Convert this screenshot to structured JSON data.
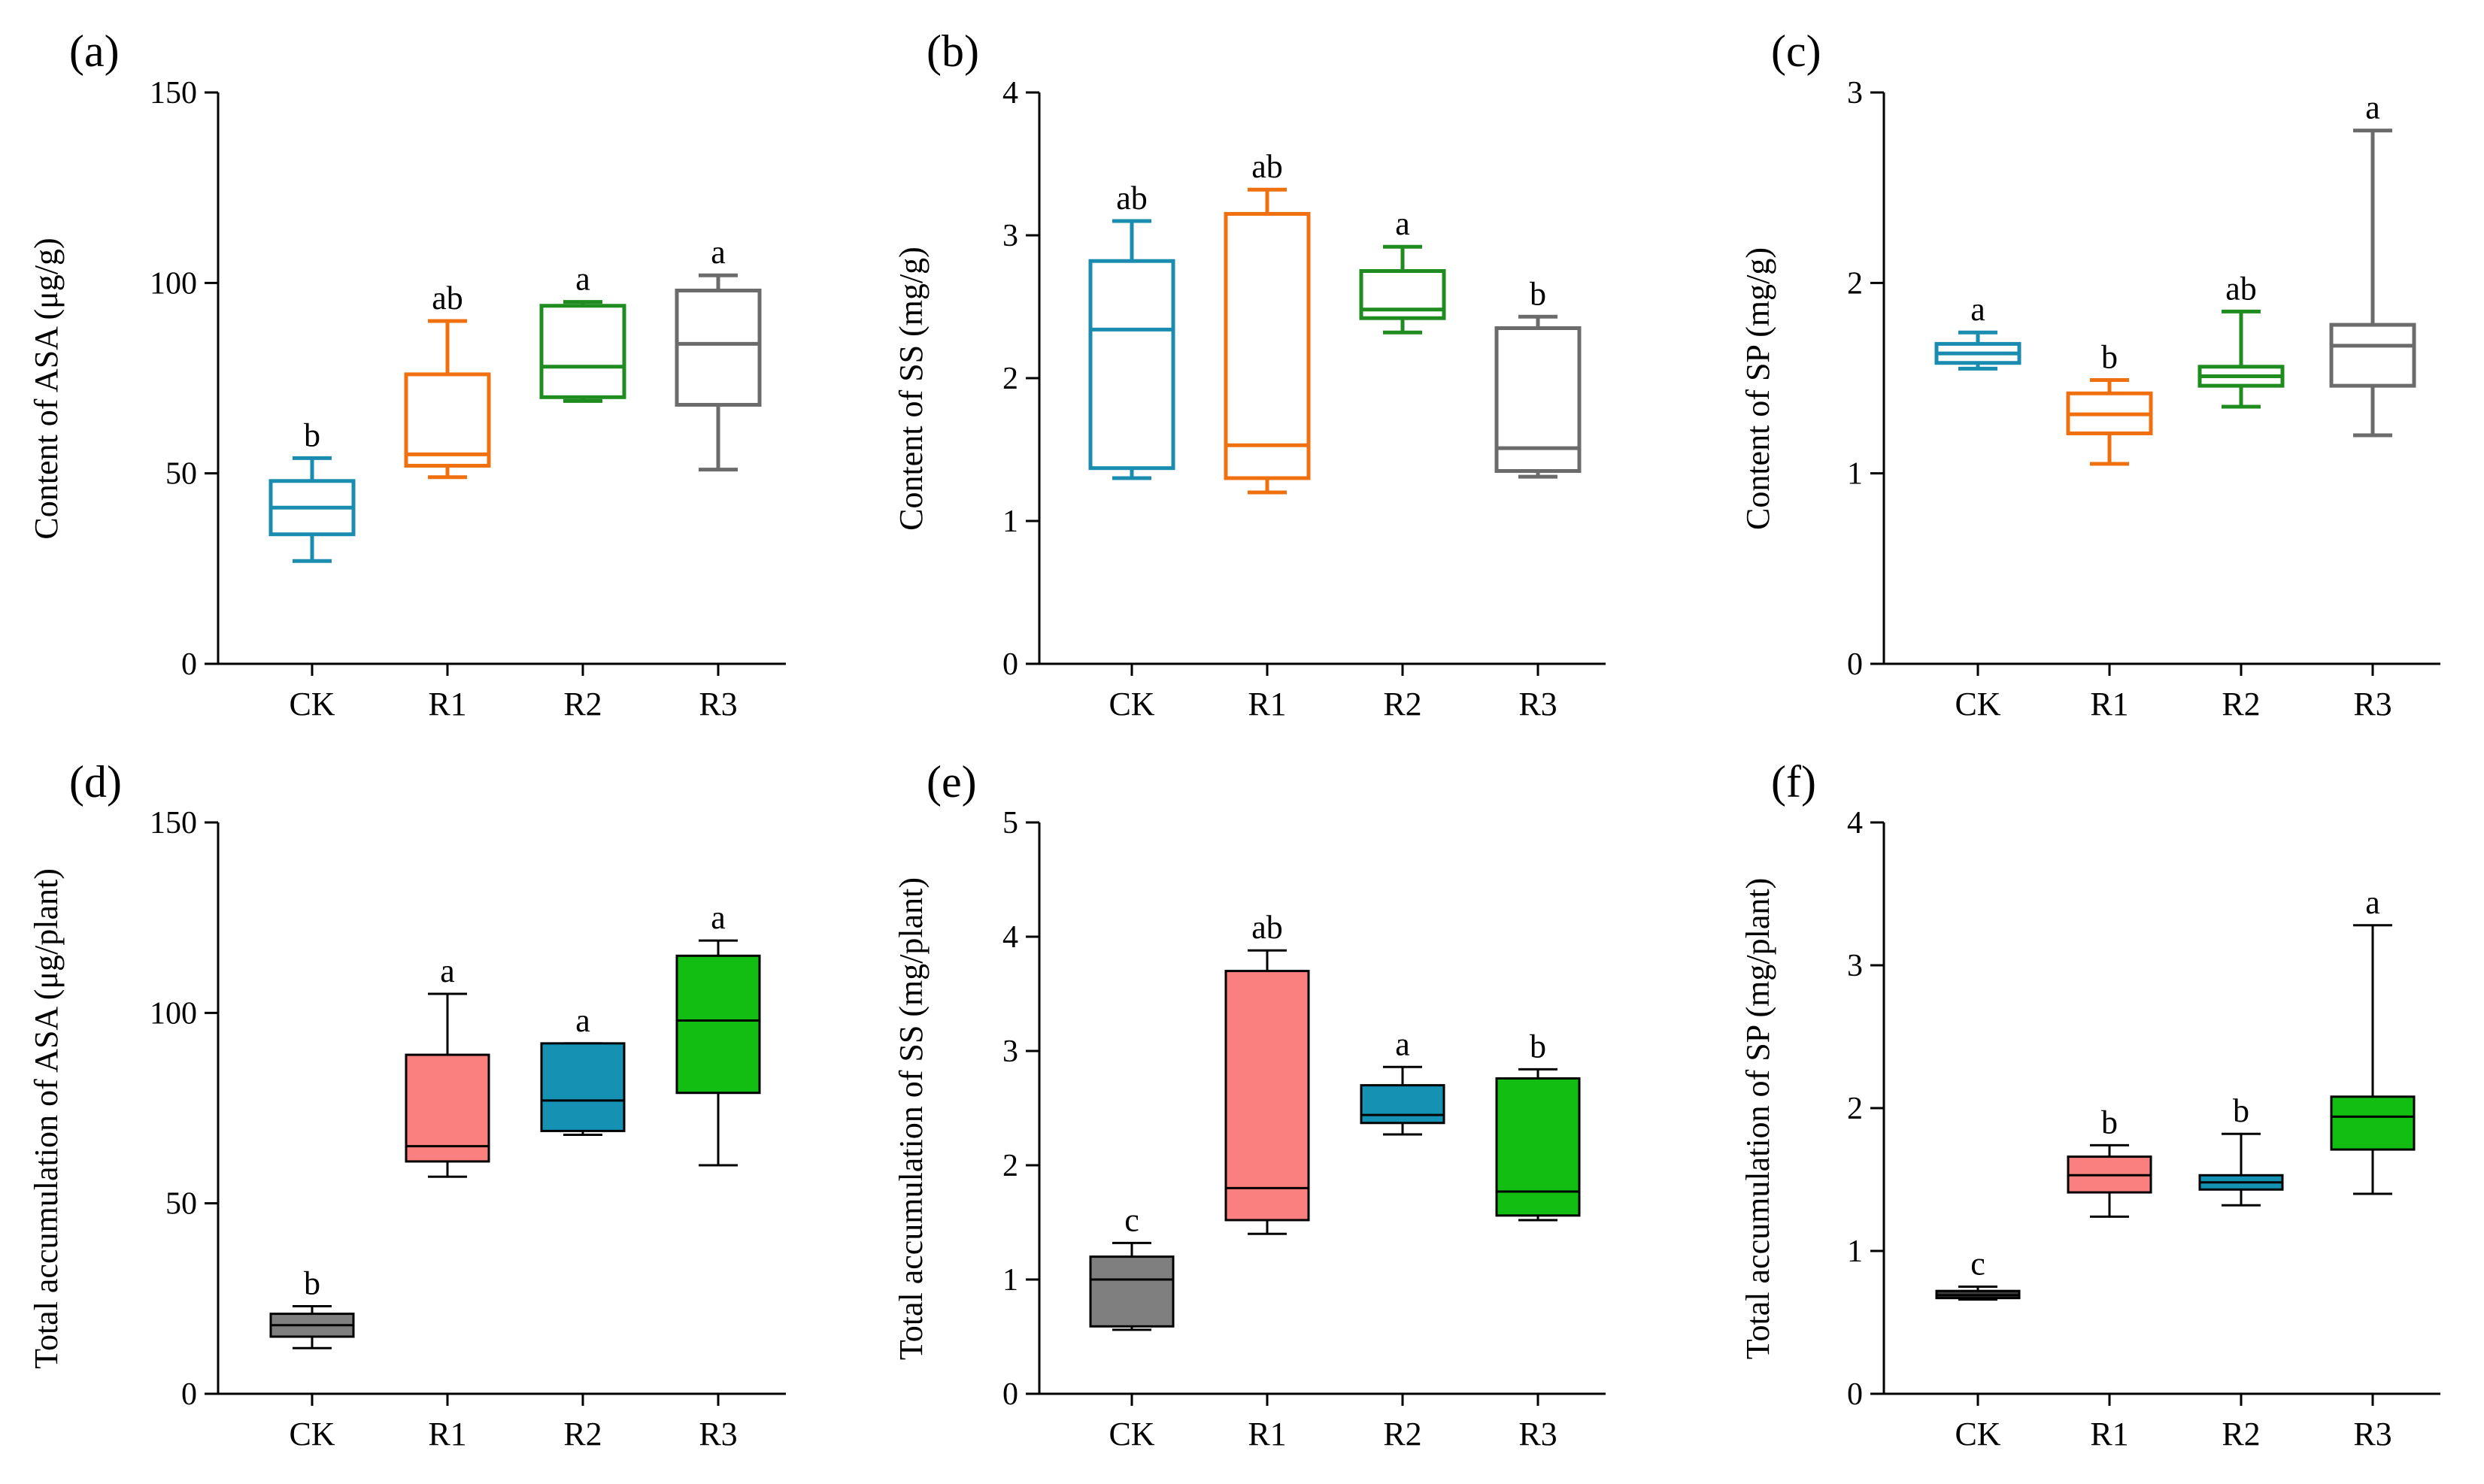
{
  "chart_data": [
    {
      "type": "box",
      "panel": "(a)",
      "ylabel": "Content of ASA (μg/g)",
      "ylim": [
        0,
        150
      ],
      "yticks": [
        0,
        50,
        100,
        150
      ],
      "yticks_text": [
        "0",
        "50",
        "100",
        "150"
      ],
      "categories": [
        "CK",
        "R1",
        "R2",
        "R3"
      ],
      "filled": false,
      "boxes": [
        {
          "min": 27,
          "q1": 34,
          "median": 41,
          "q3": 48,
          "max": 54,
          "sig": "b",
          "color": "#1a8cb0"
        },
        {
          "min": 49,
          "q1": 52,
          "median": 55,
          "q3": 76,
          "max": 90,
          "sig": "ab",
          "color": "#f07010"
        },
        {
          "min": 69,
          "q1": 70,
          "median": 78,
          "q3": 94,
          "max": 95,
          "sig": "a",
          "color": "#1e8c1e"
        },
        {
          "min": 51,
          "q1": 68,
          "median": 84,
          "q3": 98,
          "max": 102,
          "sig": "a",
          "color": "#6b6b6b"
        }
      ]
    },
    {
      "type": "box",
      "panel": "(b)",
      "ylabel": "Content of SS (mg/g)",
      "ylim": [
        0,
        4
      ],
      "yticks": [
        0,
        1,
        2,
        3,
        4
      ],
      "yticks_text": [
        "0",
        "1",
        "2",
        "3",
        "4"
      ],
      "categories": [
        "CK",
        "R1",
        "R2",
        "R3"
      ],
      "filled": false,
      "boxes": [
        {
          "min": 1.3,
          "q1": 1.37,
          "median": 2.34,
          "q3": 2.82,
          "max": 3.1,
          "sig": "ab",
          "color": "#1a8cb0"
        },
        {
          "min": 1.2,
          "q1": 1.3,
          "median": 1.53,
          "q3": 3.15,
          "max": 3.32,
          "sig": "ab",
          "color": "#f07010"
        },
        {
          "min": 2.32,
          "q1": 2.42,
          "median": 2.48,
          "q3": 2.75,
          "max": 2.92,
          "sig": "a",
          "color": "#1e8c1e"
        },
        {
          "min": 1.31,
          "q1": 1.35,
          "median": 1.51,
          "q3": 2.35,
          "max": 2.43,
          "sig": "b",
          "color": "#6b6b6b"
        }
      ]
    },
    {
      "type": "box",
      "panel": "(c)",
      "ylabel": "Content of SP (mg/g)",
      "ylim": [
        0,
        3
      ],
      "yticks": [
        0,
        1,
        2,
        3
      ],
      "yticks_text": [
        "0",
        "1",
        "2",
        "3"
      ],
      "categories": [
        "CK",
        "R1",
        "R2",
        "R3"
      ],
      "filled": false,
      "boxes": [
        {
          "min": 1.55,
          "q1": 1.58,
          "median": 1.63,
          "q3": 1.68,
          "max": 1.74,
          "sig": "a",
          "color": "#1a8cb0"
        },
        {
          "min": 1.05,
          "q1": 1.21,
          "median": 1.31,
          "q3": 1.42,
          "max": 1.49,
          "sig": "b",
          "color": "#f07010"
        },
        {
          "min": 1.35,
          "q1": 1.46,
          "median": 1.51,
          "q3": 1.56,
          "max": 1.85,
          "sig": "ab",
          "color": "#1e8c1e"
        },
        {
          "min": 1.2,
          "q1": 1.46,
          "median": 1.67,
          "q3": 1.78,
          "max": 2.8,
          "sig": "a",
          "color": "#6b6b6b"
        }
      ]
    },
    {
      "type": "box",
      "panel": "(d)",
      "ylabel": "Total accumulation of ASA (μg/plant)",
      "ylim": [
        0,
        150
      ],
      "yticks": [
        0,
        50,
        100,
        150
      ],
      "yticks_text": [
        "0",
        "50",
        "100",
        "150"
      ],
      "categories": [
        "CK",
        "R1",
        "R2",
        "R3"
      ],
      "filled": true,
      "boxes": [
        {
          "min": 12,
          "q1": 15,
          "median": 18,
          "q3": 21,
          "max": 23,
          "sig": "b",
          "color": "#7f7f7f"
        },
        {
          "min": 57,
          "q1": 61,
          "median": 65,
          "q3": 89,
          "max": 105,
          "sig": "a",
          "color": "#fa8080"
        },
        {
          "min": 68,
          "q1": 69,
          "median": 77,
          "q3": 92,
          "max": 92,
          "sig": "a",
          "color": "#1591b4"
        },
        {
          "min": 60,
          "q1": 79,
          "median": 98,
          "q3": 115,
          "max": 119,
          "sig": "a",
          "color": "#12be12"
        }
      ]
    },
    {
      "type": "box",
      "panel": "(e)",
      "ylabel": "Total accumulation of SS (mg/plant)",
      "ylim": [
        0,
        5
      ],
      "yticks": [
        0,
        1,
        2,
        3,
        4,
        5
      ],
      "yticks_text": [
        "0",
        "1",
        "2",
        "3",
        "4",
        "5"
      ],
      "categories": [
        "CK",
        "R1",
        "R2",
        "R3"
      ],
      "filled": true,
      "boxes": [
        {
          "min": 0.56,
          "q1": 0.59,
          "median": 1.0,
          "q3": 1.2,
          "max": 1.32,
          "sig": "c",
          "color": "#7f7f7f"
        },
        {
          "min": 1.4,
          "q1": 1.52,
          "median": 1.8,
          "q3": 3.7,
          "max": 3.88,
          "sig": "ab",
          "color": "#fa8080"
        },
        {
          "min": 2.27,
          "q1": 2.37,
          "median": 2.44,
          "q3": 2.7,
          "max": 2.86,
          "sig": "a",
          "color": "#1591b4"
        },
        {
          "min": 1.52,
          "q1": 1.56,
          "median": 1.77,
          "q3": 2.76,
          "max": 2.84,
          "sig": "b",
          "color": "#12be12"
        }
      ]
    },
    {
      "type": "box",
      "panel": "(f)",
      "ylabel": "Total accumulation of SP (mg/plant)",
      "ylim": [
        0,
        4
      ],
      "yticks": [
        0,
        1,
        2,
        3,
        4
      ],
      "yticks_text": [
        "0",
        "1",
        "2",
        "3",
        "4"
      ],
      "categories": [
        "CK",
        "R1",
        "R2",
        "R3"
      ],
      "filled": true,
      "boxes": [
        {
          "min": 0.66,
          "q1": 0.67,
          "median": 0.69,
          "q3": 0.72,
          "max": 0.75,
          "sig": "c",
          "color": "#3c3c3c"
        },
        {
          "min": 1.24,
          "q1": 1.41,
          "median": 1.53,
          "q3": 1.66,
          "max": 1.74,
          "sig": "b",
          "color": "#fa8080"
        },
        {
          "min": 1.32,
          "q1": 1.43,
          "median": 1.48,
          "q3": 1.53,
          "max": 1.82,
          "sig": "b",
          "color": "#1591b4"
        },
        {
          "min": 1.4,
          "q1": 1.71,
          "median": 1.94,
          "q3": 2.08,
          "max": 3.28,
          "sig": "a",
          "color": "#12be12"
        }
      ]
    }
  ]
}
